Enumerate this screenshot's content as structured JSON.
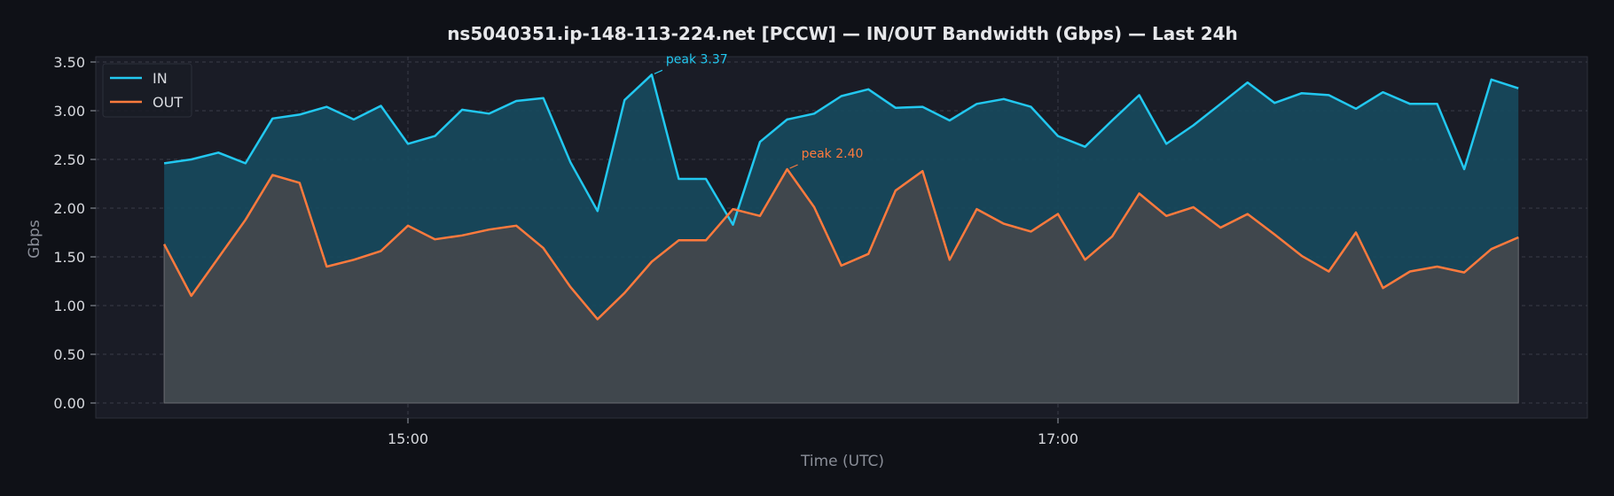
{
  "chart_data": {
    "type": "area",
    "title": "ns5040351.ip-148-113-224.net [PCCW] — IN/OUT Bandwidth (Gbps) — Last 24h",
    "xlabel": "Time (UTC)",
    "ylabel": "Gbps",
    "ylim": [
      0,
      3.5
    ],
    "yticks": [
      "0.00",
      "0.50",
      "1.00",
      "1.50",
      "2.00",
      "2.50",
      "3.00",
      "3.50"
    ],
    "xticks": [
      {
        "label": "15:00",
        "time": "15:00"
      },
      {
        "label": "17:00",
        "time": "17:00"
      }
    ],
    "x_times": [
      "14:15",
      "14:20",
      "14:25",
      "14:30",
      "14:35",
      "14:40",
      "14:45",
      "14:50",
      "14:55",
      "15:00",
      "15:05",
      "15:10",
      "15:15",
      "15:20",
      "15:25",
      "15:30",
      "15:35",
      "15:40",
      "15:45",
      "15:50",
      "15:55",
      "16:00",
      "16:05",
      "16:10",
      "16:15",
      "16:20",
      "16:25",
      "16:30",
      "16:35",
      "16:40",
      "16:45",
      "16:50",
      "16:55",
      "17:00",
      "17:05",
      "17:10",
      "17:15",
      "17:20",
      "17:25",
      "17:30",
      "17:35",
      "17:40",
      "17:45",
      "17:50",
      "17:55",
      "18:00",
      "18:05",
      "18:10",
      "18:15",
      "18:20",
      "18:25"
    ],
    "series": [
      {
        "name": "IN",
        "color": "#22c8f0",
        "values": [
          2.46,
          2.5,
          2.57,
          2.46,
          2.92,
          2.96,
          3.04,
          2.91,
          3.05,
          2.66,
          2.74,
          3.01,
          2.97,
          3.1,
          3.13,
          2.47,
          1.97,
          3.11,
          3.37,
          2.3,
          2.3,
          1.83,
          2.68,
          2.91,
          2.97,
          3.15,
          3.22,
          3.03,
          3.04,
          2.9,
          3.07,
          3.12,
          3.04,
          2.74,
          2.63,
          2.9,
          3.16,
          2.66,
          2.85,
          3.07,
          3.29,
          3.08,
          3.18,
          3.16,
          3.02,
          3.19,
          3.07,
          3.07,
          2.4,
          3.32,
          3.23
        ]
      },
      {
        "name": "OUT",
        "color": "#ff7a3d",
        "values": [
          1.63,
          1.1,
          1.49,
          1.88,
          2.34,
          2.26,
          1.4,
          1.47,
          1.56,
          1.82,
          1.68,
          1.72,
          1.78,
          1.82,
          1.59,
          1.19,
          0.86,
          1.13,
          1.45,
          1.67,
          1.67,
          1.99,
          1.92,
          2.4,
          2.01,
          1.41,
          1.53,
          2.18,
          2.38,
          1.47,
          1.99,
          1.84,
          1.76,
          1.94,
          1.47,
          1.71,
          2.15,
          1.92,
          2.01,
          1.8,
          1.94,
          1.73,
          1.51,
          1.35,
          1.75,
          1.18,
          1.35,
          1.4,
          1.34,
          1.58,
          1.7
        ]
      }
    ],
    "annotations": [
      {
        "text": "peak 3.37",
        "series": "IN",
        "index": 18,
        "color": "#22c8f0"
      },
      {
        "text": "peak 2.40",
        "series": "OUT",
        "index": 23,
        "color": "#ff7a3d"
      }
    ],
    "legend": {
      "placement": "top-left"
    },
    "grid": true,
    "colors": {
      "page_bg": "#0f1117",
      "plot_bg": "#1a1c26",
      "grid": "#3a3d48",
      "in_fill": "#174a5e",
      "out_fill": "#45474d"
    }
  }
}
